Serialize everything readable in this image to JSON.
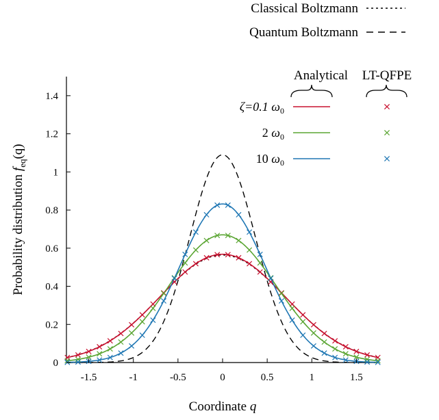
{
  "chart_data": {
    "type": "line",
    "xlabel": "Coordinate",
    "xlabel_var": "q",
    "ylabel": "Probability distribution",
    "ylabel_func": "f",
    "ylabel_sub": "eq",
    "ylabel_arg": "(q)",
    "xlim": [
      -1.75,
      1.75
    ],
    "ylim": [
      0,
      1.5
    ],
    "xticks": [
      -1.5,
      -1,
      -0.5,
      0,
      0.5,
      1,
      1.5
    ],
    "xtick_labels": [
      "-1.5",
      "-1",
      "-0.5",
      "0",
      "0.5",
      "1",
      "1.5"
    ],
    "yticks": [
      0,
      0.2,
      0.4,
      0.6,
      0.8,
      1,
      1.2,
      1.4
    ],
    "ytick_labels": [
      "0",
      "0.2",
      "0.4",
      "0.6",
      "0.8",
      "1",
      "1.2",
      "1.4"
    ],
    "grid": false,
    "legend_position": "top-right",
    "reference_curves": [
      {
        "name": "Classical Boltzmann",
        "style": "dotted",
        "color": "#000000",
        "peak": 0.564,
        "sigma": 0.707
      },
      {
        "name": "Quantum Boltzmann",
        "style": "dashed",
        "color": "#000000",
        "peak": 1.09,
        "sigma": 0.366
      }
    ],
    "column_headers": {
      "analytical": "Analytical",
      "numerical": "LT-QFPE"
    },
    "series": [
      {
        "name": "ζ=0.1 ω0",
        "label_main": "ζ=0.1",
        "label_unit": "ω",
        "label_sub": "0",
        "color": "#c8102e",
        "peak": 0.568,
        "sigma": 0.703
      },
      {
        "name": "2 ω0",
        "label_main": "2",
        "label_unit": "ω",
        "label_sub": "0",
        "color": "#5aa532",
        "peak": 0.67,
        "sigma": 0.596
      },
      {
        "name": "10 ω0",
        "label_main": "10",
        "label_unit": "ω",
        "label_sub": "0",
        "color": "#1f77b4",
        "peak": 0.832,
        "sigma": 0.48
      }
    ],
    "marker_x": [
      -1.74,
      -1.62,
      -1.5,
      -1.38,
      -1.26,
      -1.14,
      -1.02,
      -0.9,
      -0.78,
      -0.66,
      -0.54,
      -0.42,
      -0.3,
      -0.18,
      -0.06,
      0.06,
      0.18,
      0.3,
      0.42,
      0.54,
      0.66,
      0.78,
      0.9,
      1.02,
      1.14,
      1.26,
      1.38,
      1.5,
      1.62,
      1.74
    ]
  }
}
